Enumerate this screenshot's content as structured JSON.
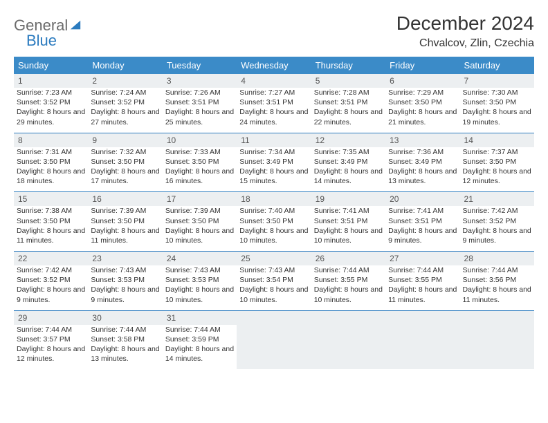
{
  "brand": {
    "part1": "General",
    "part2": "Blue"
  },
  "title": "December 2024",
  "location": "Chvalcov, Zlin, Czechia",
  "colors": {
    "header_bg": "#3b8bc8",
    "header_text": "#ffffff",
    "row_accent": "#2b7bbf",
    "daynum_bg": "#eceff1",
    "text": "#333333",
    "logo_gray": "#6b6b6b",
    "logo_blue": "#2b7bbf"
  },
  "typography": {
    "title_fontsize": 28,
    "location_fontsize": 16,
    "dayhead_fontsize": 13,
    "cell_fontsize": 10.5
  },
  "days_of_week": [
    "Sunday",
    "Monday",
    "Tuesday",
    "Wednesday",
    "Thursday",
    "Friday",
    "Saturday"
  ],
  "weeks": [
    [
      {
        "n": "1",
        "sunrise": "Sunrise: 7:23 AM",
        "sunset": "Sunset: 3:52 PM",
        "daylight": "Daylight: 8 hours and 29 minutes."
      },
      {
        "n": "2",
        "sunrise": "Sunrise: 7:24 AM",
        "sunset": "Sunset: 3:52 PM",
        "daylight": "Daylight: 8 hours and 27 minutes."
      },
      {
        "n": "3",
        "sunrise": "Sunrise: 7:26 AM",
        "sunset": "Sunset: 3:51 PM",
        "daylight": "Daylight: 8 hours and 25 minutes."
      },
      {
        "n": "4",
        "sunrise": "Sunrise: 7:27 AM",
        "sunset": "Sunset: 3:51 PM",
        "daylight": "Daylight: 8 hours and 24 minutes."
      },
      {
        "n": "5",
        "sunrise": "Sunrise: 7:28 AM",
        "sunset": "Sunset: 3:51 PM",
        "daylight": "Daylight: 8 hours and 22 minutes."
      },
      {
        "n": "6",
        "sunrise": "Sunrise: 7:29 AM",
        "sunset": "Sunset: 3:50 PM",
        "daylight": "Daylight: 8 hours and 21 minutes."
      },
      {
        "n": "7",
        "sunrise": "Sunrise: 7:30 AM",
        "sunset": "Sunset: 3:50 PM",
        "daylight": "Daylight: 8 hours and 19 minutes."
      }
    ],
    [
      {
        "n": "8",
        "sunrise": "Sunrise: 7:31 AM",
        "sunset": "Sunset: 3:50 PM",
        "daylight": "Daylight: 8 hours and 18 minutes."
      },
      {
        "n": "9",
        "sunrise": "Sunrise: 7:32 AM",
        "sunset": "Sunset: 3:50 PM",
        "daylight": "Daylight: 8 hours and 17 minutes."
      },
      {
        "n": "10",
        "sunrise": "Sunrise: 7:33 AM",
        "sunset": "Sunset: 3:50 PM",
        "daylight": "Daylight: 8 hours and 16 minutes."
      },
      {
        "n": "11",
        "sunrise": "Sunrise: 7:34 AM",
        "sunset": "Sunset: 3:49 PM",
        "daylight": "Daylight: 8 hours and 15 minutes."
      },
      {
        "n": "12",
        "sunrise": "Sunrise: 7:35 AM",
        "sunset": "Sunset: 3:49 PM",
        "daylight": "Daylight: 8 hours and 14 minutes."
      },
      {
        "n": "13",
        "sunrise": "Sunrise: 7:36 AM",
        "sunset": "Sunset: 3:49 PM",
        "daylight": "Daylight: 8 hours and 13 minutes."
      },
      {
        "n": "14",
        "sunrise": "Sunrise: 7:37 AM",
        "sunset": "Sunset: 3:50 PM",
        "daylight": "Daylight: 8 hours and 12 minutes."
      }
    ],
    [
      {
        "n": "15",
        "sunrise": "Sunrise: 7:38 AM",
        "sunset": "Sunset: 3:50 PM",
        "daylight": "Daylight: 8 hours and 11 minutes."
      },
      {
        "n": "16",
        "sunrise": "Sunrise: 7:39 AM",
        "sunset": "Sunset: 3:50 PM",
        "daylight": "Daylight: 8 hours and 11 minutes."
      },
      {
        "n": "17",
        "sunrise": "Sunrise: 7:39 AM",
        "sunset": "Sunset: 3:50 PM",
        "daylight": "Daylight: 8 hours and 10 minutes."
      },
      {
        "n": "18",
        "sunrise": "Sunrise: 7:40 AM",
        "sunset": "Sunset: 3:50 PM",
        "daylight": "Daylight: 8 hours and 10 minutes."
      },
      {
        "n": "19",
        "sunrise": "Sunrise: 7:41 AM",
        "sunset": "Sunset: 3:51 PM",
        "daylight": "Daylight: 8 hours and 10 minutes."
      },
      {
        "n": "20",
        "sunrise": "Sunrise: 7:41 AM",
        "sunset": "Sunset: 3:51 PM",
        "daylight": "Daylight: 8 hours and 9 minutes."
      },
      {
        "n": "21",
        "sunrise": "Sunrise: 7:42 AM",
        "sunset": "Sunset: 3:52 PM",
        "daylight": "Daylight: 8 hours and 9 minutes."
      }
    ],
    [
      {
        "n": "22",
        "sunrise": "Sunrise: 7:42 AM",
        "sunset": "Sunset: 3:52 PM",
        "daylight": "Daylight: 8 hours and 9 minutes."
      },
      {
        "n": "23",
        "sunrise": "Sunrise: 7:43 AM",
        "sunset": "Sunset: 3:53 PM",
        "daylight": "Daylight: 8 hours and 9 minutes."
      },
      {
        "n": "24",
        "sunrise": "Sunrise: 7:43 AM",
        "sunset": "Sunset: 3:53 PM",
        "daylight": "Daylight: 8 hours and 10 minutes."
      },
      {
        "n": "25",
        "sunrise": "Sunrise: 7:43 AM",
        "sunset": "Sunset: 3:54 PM",
        "daylight": "Daylight: 8 hours and 10 minutes."
      },
      {
        "n": "26",
        "sunrise": "Sunrise: 7:44 AM",
        "sunset": "Sunset: 3:55 PM",
        "daylight": "Daylight: 8 hours and 10 minutes."
      },
      {
        "n": "27",
        "sunrise": "Sunrise: 7:44 AM",
        "sunset": "Sunset: 3:55 PM",
        "daylight": "Daylight: 8 hours and 11 minutes."
      },
      {
        "n": "28",
        "sunrise": "Sunrise: 7:44 AM",
        "sunset": "Sunset: 3:56 PM",
        "daylight": "Daylight: 8 hours and 11 minutes."
      }
    ],
    [
      {
        "n": "29",
        "sunrise": "Sunrise: 7:44 AM",
        "sunset": "Sunset: 3:57 PM",
        "daylight": "Daylight: 8 hours and 12 minutes."
      },
      {
        "n": "30",
        "sunrise": "Sunrise: 7:44 AM",
        "sunset": "Sunset: 3:58 PM",
        "daylight": "Daylight: 8 hours and 13 minutes."
      },
      {
        "n": "31",
        "sunrise": "Sunrise: 7:44 AM",
        "sunset": "Sunset: 3:59 PM",
        "daylight": "Daylight: 8 hours and 14 minutes."
      },
      null,
      null,
      null,
      null
    ]
  ]
}
